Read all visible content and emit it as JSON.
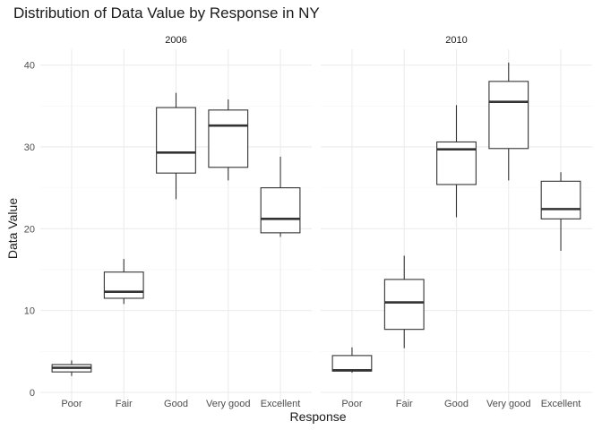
{
  "chart_data": {
    "type": "boxplot",
    "title": "Distribution of Data Value by Response in NY",
    "xlabel": "Response",
    "ylabel": "Data Value",
    "ylim": [
      0,
      42
    ],
    "yticks": [
      0,
      10,
      20,
      30,
      40
    ],
    "grid": true,
    "categories": [
      "Poor",
      "Fair",
      "Good",
      "Very good",
      "Excellent"
    ],
    "panels": [
      {
        "name": "2006",
        "boxes": [
          {
            "category": "Poor",
            "min": 2.0,
            "q1": 2.5,
            "median": 3.0,
            "q3": 3.4,
            "max": 3.9
          },
          {
            "category": "Fair",
            "min": 10.8,
            "q1": 11.5,
            "median": 12.3,
            "q3": 14.7,
            "max": 16.3
          },
          {
            "category": "Good",
            "min": 23.6,
            "q1": 26.8,
            "median": 29.3,
            "q3": 34.8,
            "max": 36.6
          },
          {
            "category": "Very good",
            "min": 25.9,
            "q1": 27.5,
            "median": 32.6,
            "q3": 34.5,
            "max": 35.8
          },
          {
            "category": "Excellent",
            "min": 19.0,
            "q1": 19.5,
            "median": 21.2,
            "q3": 25.0,
            "max": 28.8
          }
        ]
      },
      {
        "name": "2010",
        "boxes": [
          {
            "category": "Poor",
            "min": 2.4,
            "q1": 2.6,
            "median": 2.7,
            "q3": 4.5,
            "max": 5.5
          },
          {
            "category": "Fair",
            "min": 5.4,
            "q1": 7.7,
            "median": 11.0,
            "q3": 13.8,
            "max": 16.7
          },
          {
            "category": "Good",
            "min": 21.4,
            "q1": 25.4,
            "median": 29.7,
            "q3": 30.6,
            "max": 35.1
          },
          {
            "category": "Very good",
            "min": 25.9,
            "q1": 29.8,
            "median": 35.5,
            "q3": 38.0,
            "max": 40.3
          },
          {
            "category": "Excellent",
            "min": 17.3,
            "q1": 21.2,
            "median": 22.4,
            "q3": 25.8,
            "max": 26.9
          }
        ]
      }
    ]
  }
}
